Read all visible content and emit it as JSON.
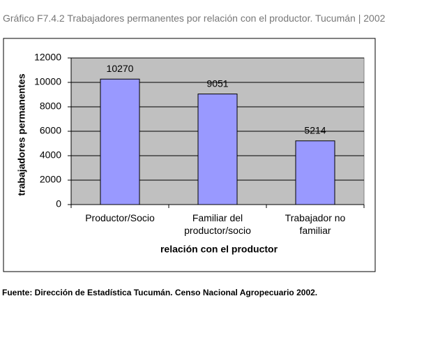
{
  "chart_data": {
    "type": "bar",
    "title": "Gráfico F7.4.2 Trabajadores permanentes por relación con el productor. Tucumán | 2002",
    "source": "Fuente: Dirección de Estadística Tucumán. Censo Nacional Agropecuario 2002.",
    "x_label": "relación con el productor",
    "y_label": "trabajadores permanentes",
    "categories": [
      "Productor/Socio",
      "Familiar del productor/socio",
      "Trabajador no familiar"
    ],
    "values": [
      10270,
      9051,
      5214
    ],
    "color": "#9999ff",
    "ylim": [
      0,
      12000
    ],
    "yticks": [
      0,
      2000,
      4000,
      6000,
      8000,
      10000,
      12000
    ],
    "grid": true
  }
}
